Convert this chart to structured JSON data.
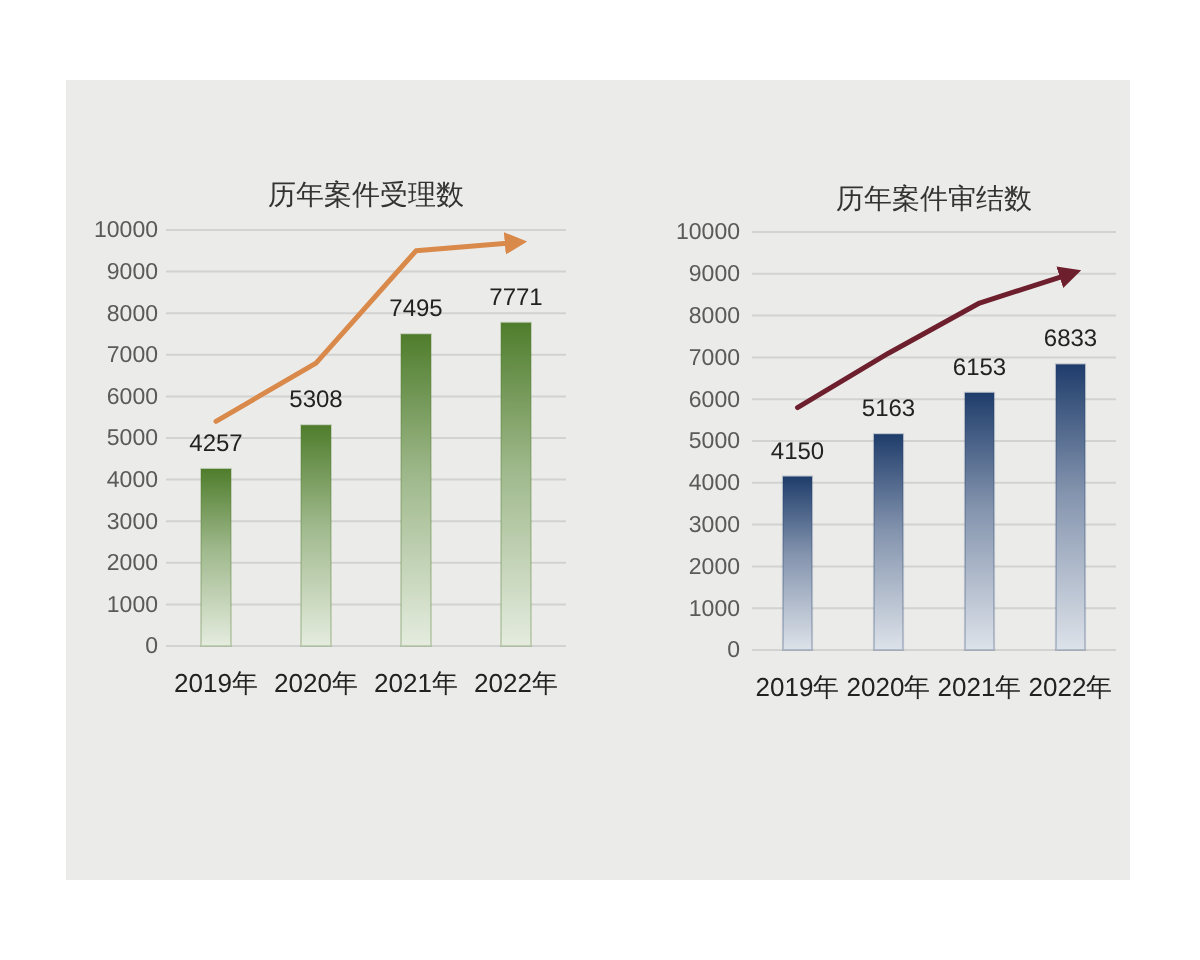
{
  "chart_data": [
    {
      "type": "bar",
      "title": "历年案件受理数",
      "categories": [
        "2019年",
        "2020年",
        "2021年",
        "2022年"
      ],
      "series": [
        {
          "color": "#4f7d2c",
          "values": [
            4257,
            5308,
            7495,
            7771
          ],
          "value_labels": [
            "4257",
            "5308",
            "7495",
            "7771"
          ]
        },
        {
          "type": "line",
          "color": "#d9894a",
          "values": [
            5400,
            6800,
            9500,
            9700
          ]
        }
      ],
      "ylim": [
        0,
        10000
      ],
      "yticks": [
        0,
        1000,
        2000,
        3000,
        4000,
        5000,
        6000,
        7000,
        8000,
        9000,
        10000
      ],
      "grid": "y",
      "marker": "none",
      "line_style": "solid"
    },
    {
      "type": "bar",
      "title": "历年案件审结数",
      "categories": [
        "2019年",
        "2020年",
        "2021年",
        "2022年"
      ],
      "series": [
        {
          "color": "#1f3d6b",
          "values": [
            4150,
            5163,
            6153,
            6833
          ],
          "value_labels": [
            "4150",
            "5163",
            "6153",
            "6833"
          ]
        },
        {
          "type": "line",
          "color": "#6e1f2e",
          "values": [
            5800,
            7100,
            8300,
            9000
          ]
        }
      ],
      "ylim": [
        0,
        10000
      ],
      "yticks": [
        0,
        1000,
        2000,
        3000,
        4000,
        5000,
        6000,
        7000,
        8000,
        9000,
        10000
      ],
      "grid": "y",
      "marker": "none",
      "line_style": "solid"
    }
  ]
}
